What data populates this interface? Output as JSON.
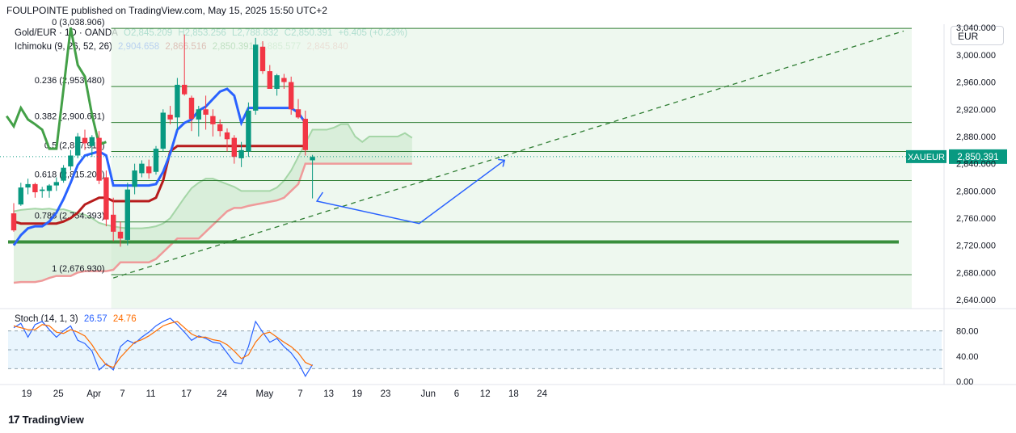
{
  "header": {
    "publisher": "FOULPOINTE published on TradingView.com, May 15, 2025 15:50 UTC+2"
  },
  "legend": {
    "symbol": "Gold/EUR · 1D · OANDA",
    "o": "O2,845.209",
    "h": "H2,853.256",
    "l": "L2,788.832",
    "c": "C2,850.391",
    "change": "+6.405 (+0.23%)",
    "ichimoku_label": "Ichimoku (9, 26, 52, 26)",
    "ichimoku_values": [
      "2,904.658",
      "2,866.516",
      "2,850.391",
      "2,885.577",
      "2,845.840"
    ],
    "stoch_label": "Stoch (14, 1, 3)",
    "stoch_k": "26.57",
    "stoch_d": "24.76"
  },
  "currency_button": "EUR",
  "price_tag": {
    "symbol": "XAUEUR",
    "price": "2,850.391"
  },
  "footer": {
    "brand": "TradingView"
  },
  "colors": {
    "up": "#089981",
    "down": "#f23645",
    "tenkan": "#2962ff",
    "kijun": "#b71c1c",
    "span_a": "#43a047",
    "span_b": "#ef9a9a",
    "chikou": "#43a047",
    "fib_zone": "#e8f5e9"
  },
  "chart_data": [
    {
      "type": "candlestick",
      "title": "Gold/EUR · 1D · OANDA",
      "x": [
        "Mar 18",
        "Mar 19",
        "Mar 20",
        "Mar 21",
        "Mar 24",
        "Mar 25",
        "Mar 26",
        "Mar 27",
        "Mar 28",
        "Mar 31",
        "Apr 1",
        "Apr 2",
        "Apr 3",
        "Apr 4",
        "Apr 7",
        "Apr 8",
        "Apr 9",
        "Apr 10",
        "Apr 11",
        "Apr 14",
        "Apr 15",
        "Apr 16",
        "Apr 17",
        "Apr 18",
        "Apr 21",
        "Apr 22",
        "Apr 23",
        "Apr 24",
        "Apr 25",
        "Apr 28",
        "Apr 29",
        "Apr 30",
        "May 1",
        "May 2",
        "May 5",
        "May 6",
        "May 7",
        "May 8",
        "May 9",
        "May 12",
        "May 13",
        "May 14",
        "May 15"
      ],
      "ohlc": [
        [
          2767,
          2782,
          2740,
          2742
        ],
        [
          2780,
          2812,
          2778,
          2805
        ],
        [
          2805,
          2818,
          2795,
          2810
        ],
        [
          2810,
          2812,
          2790,
          2798
        ],
        [
          2800,
          2806,
          2790,
          2802
        ],
        [
          2800,
          2810,
          2790,
          2808
        ],
        [
          2808,
          2820,
          2800,
          2813
        ],
        [
          2815,
          2838,
          2812,
          2834
        ],
        [
          2836,
          2860,
          2830,
          2852
        ],
        [
          2852,
          2885,
          2848,
          2880
        ],
        [
          2878,
          2890,
          2860,
          2870
        ],
        [
          2866,
          2882,
          2850,
          2879
        ],
        [
          2878,
          2888,
          2810,
          2815
        ],
        [
          2820,
          2830,
          2748,
          2758
        ],
        [
          2765,
          2790,
          2726,
          2740
        ],
        [
          2740,
          2755,
          2718,
          2730
        ],
        [
          2728,
          2812,
          2720,
          2802
        ],
        [
          2806,
          2840,
          2795,
          2830
        ],
        [
          2826,
          2845,
          2820,
          2840
        ],
        [
          2836,
          2846,
          2818,
          2826
        ],
        [
          2828,
          2866,
          2824,
          2862
        ],
        [
          2862,
          2920,
          2858,
          2915
        ],
        [
          2912,
          2925,
          2898,
          2905
        ],
        [
          2908,
          2966,
          2890,
          2956
        ],
        [
          2956,
          3030,
          2940,
          2942
        ],
        [
          2937,
          2940,
          2888,
          2906
        ],
        [
          2905,
          2925,
          2880,
          2920
        ],
        [
          2920,
          2940,
          2890,
          2912
        ],
        [
          2910,
          2920,
          2880,
          2898
        ],
        [
          2898,
          2905,
          2880,
          2888
        ],
        [
          2886,
          2892,
          2858,
          2876
        ],
        [
          2878,
          2882,
          2840,
          2850
        ],
        [
          2848,
          2872,
          2835,
          2860
        ],
        [
          2858,
          2930,
          2850,
          2918
        ],
        [
          2918,
          3025,
          2912,
          3015
        ],
        [
          3012,
          3020,
          2972,
          2976
        ],
        [
          2976,
          2985,
          2950,
          2950
        ],
        [
          2950,
          2972,
          2940,
          2970
        ],
        [
          2966,
          2972,
          2950,
          2960
        ],
        [
          2960,
          2968,
          2912,
          2920
        ],
        [
          2920,
          2935,
          2906,
          2908
        ],
        [
          2906,
          2918,
          2852,
          2860
        ],
        [
          2845,
          2853,
          2789,
          2850
        ]
      ],
      "ichimoku": {
        "tenkan": [
          2720,
          2735,
          2745,
          2748,
          2748,
          2755,
          2768,
          2788,
          2812,
          2838,
          2852,
          2855,
          2858,
          2852,
          2808,
          2808,
          2808,
          2808,
          2808,
          2808,
          2810,
          2828,
          2855,
          2890,
          2900,
          2905,
          2918,
          2924,
          2935,
          2946,
          2950,
          2940,
          2900,
          2922,
          2922,
          2922,
          2922,
          2922,
          2922,
          2922,
          2915,
          2900
        ],
        "kijun": [
          2755,
          2752,
          2752,
          2752,
          2752,
          2752,
          2752,
          2755,
          2760,
          2768,
          2780,
          2785,
          2790,
          2790,
          2785,
          2785,
          2785,
          2785,
          2785,
          2785,
          2790,
          2815,
          2858,
          2866,
          2866,
          2866,
          2866,
          2866,
          2866,
          2866,
          2866,
          2866,
          2866,
          2866,
          2866,
          2866,
          2866,
          2866,
          2866,
          2866,
          2866,
          2866
        ],
        "chikou": [
          2910,
          2895,
          2922,
          2905,
          2898,
          2890,
          2862,
          2862,
          2950,
          3040,
          2985,
          2968,
          2912,
          2868,
          2872
        ],
        "span_a": [
          2770,
          2772,
          2773,
          2774,
          2773,
          2774,
          2772,
          2773,
          2770,
          2767,
          2765,
          2760,
          2753,
          2750,
          2748,
          2746,
          2745,
          2745,
          2745,
          2746,
          2748,
          2752,
          2760,
          2775,
          2790,
          2804,
          2812,
          2818,
          2818,
          2814,
          2810,
          2806,
          2800,
          2800,
          2800,
          2800,
          2800,
          2805,
          2815,
          2830,
          2850,
          2870,
          2890,
          2890,
          2890,
          2893,
          2898,
          2898,
          2880,
          2872,
          2880,
          2880,
          2880,
          2880,
          2880,
          2885,
          2878
        ],
        "span_b": [
          2665,
          2666,
          2666,
          2666,
          2668,
          2672,
          2675,
          2675,
          2675,
          2680,
          2682,
          2682,
          2682,
          2682,
          2684,
          2695,
          2695,
          2695,
          2695,
          2695,
          2700,
          2710,
          2720,
          2730,
          2730,
          2730,
          2730,
          2740,
          2750,
          2760,
          2770,
          2775,
          2775,
          2778,
          2780,
          2782,
          2784,
          2786,
          2790,
          2800,
          2810,
          2840,
          2840,
          2840,
          2840,
          2840,
          2840,
          2840,
          2840,
          2840,
          2840,
          2840,
          2840,
          2840,
          2840,
          2840,
          2840
        ]
      },
      "fibonacci": [
        {
          "level": "0",
          "price": 3038.906,
          "label": "0 (3,038.906)"
        },
        {
          "level": "0.236",
          "price": 2953.48,
          "label": "0.236 (2,953.480)"
        },
        {
          "level": "0.382",
          "price": 2900.631,
          "label": "0.382 (2,900.631)"
        },
        {
          "level": "0.5",
          "price": 2857.918,
          "label": "0.5 (2,857.918)"
        },
        {
          "level": "0.618",
          "price": 2815.205,
          "label": "0.618 (2,815.205)"
        },
        {
          "level": "0.786",
          "price": 2754.393,
          "label": "0.786 (2,754.393)"
        },
        {
          "level": "1",
          "price": 2676.93,
          "label": "1 (2,676.930)"
        }
      ],
      "support_line": 2725,
      "y_ticks": [
        "3,040.000",
        "3,000.000",
        "2,960.000",
        "2,920.000",
        "2,880.000",
        "2,840.000",
        "2,800.000",
        "2,760.000",
        "2,720.000",
        "2,680.000",
        "2,640.000"
      ],
      "x_ticks": [
        "19",
        "25",
        "Apr",
        "7",
        "11",
        "17",
        "24",
        "May",
        "7",
        "13",
        "19",
        "23",
        "Jun",
        "6",
        "12",
        "18",
        "24"
      ],
      "ylim": [
        2627,
        3045
      ]
    },
    {
      "type": "line",
      "title": "Stoch (14, 1, 3)",
      "series": [
        {
          "name": "K",
          "values": [
            85,
            92,
            70,
            90,
            95,
            82,
            70,
            80,
            88,
            65,
            60,
            48,
            18,
            28,
            18,
            55,
            65,
            60,
            70,
            78,
            88,
            95,
            100,
            90,
            78,
            65,
            72,
            68,
            62,
            60,
            45,
            30,
            28,
            55,
            95,
            78,
            62,
            68,
            55,
            45,
            30,
            8,
            26.57
          ]
        },
        {
          "name": "D",
          "values": [
            88,
            85,
            82,
            82,
            90,
            88,
            78,
            76,
            82,
            78,
            72,
            58,
            40,
            26,
            22,
            38,
            50,
            62,
            66,
            72,
            80,
            88,
            92,
            95,
            85,
            75,
            70,
            70,
            66,
            64,
            58,
            48,
            36,
            42,
            62,
            75,
            78,
            70,
            62,
            55,
            45,
            30,
            24.76
          ]
        }
      ],
      "y_ticks": [
        "80.00",
        "40.00",
        "0.00"
      ],
      "band": [
        20,
        80
      ],
      "ylim": [
        0,
        100
      ]
    }
  ]
}
